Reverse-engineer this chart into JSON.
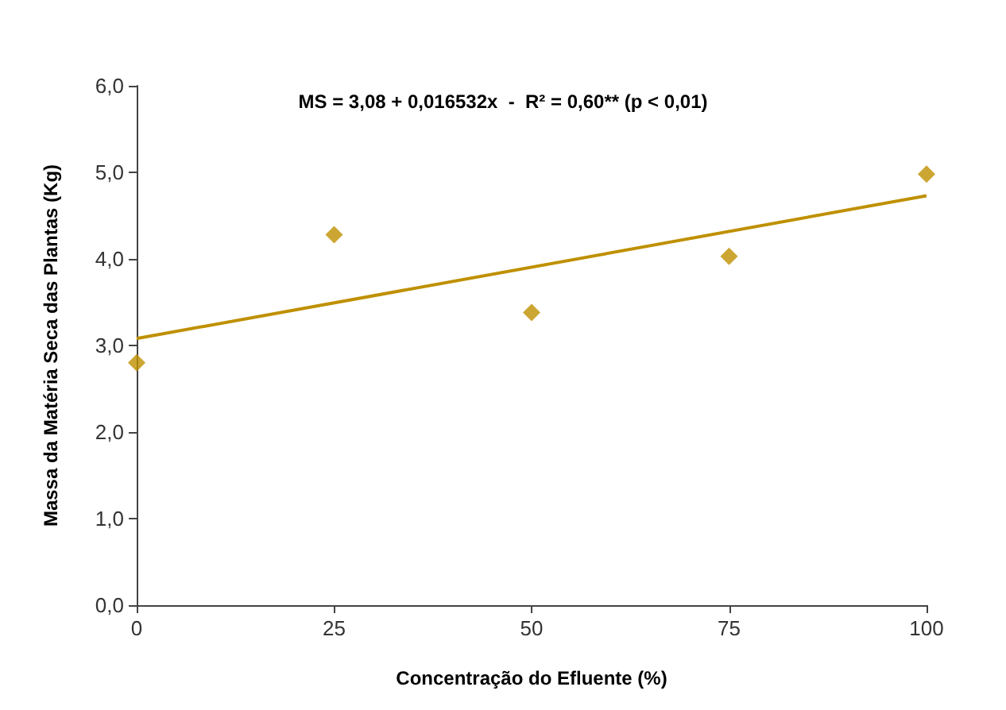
{
  "chart_data": {
    "type": "scatter",
    "xlabel": "Concentração do Efluente (%)",
    "ylabel": "Massa da Matéria Seca das Plantas (Kg)",
    "annotations": [
      "MS = 3,08 + 0,016532x  -  R² = 0,60** (p < 0,01)"
    ],
    "xlim": [
      0,
      100
    ],
    "xticks": [
      0,
      25,
      50,
      75,
      100
    ],
    "ylim": [
      0,
      6
    ],
    "yticks": [
      {
        "value": 0,
        "label": "0,0"
      },
      {
        "value": 1,
        "label": "1,0"
      },
      {
        "value": 2,
        "label": "2,0"
      },
      {
        "value": 3,
        "label": "3,0"
      },
      {
        "value": 4,
        "label": "4,0"
      },
      {
        "value": 5,
        "label": "5,0"
      },
      {
        "value": 6,
        "label": "6,0"
      }
    ],
    "grid": false,
    "marker": "diamond",
    "series": [
      {
        "color": "#bf9000",
        "x": [
          0,
          25,
          50,
          75,
          100
        ],
        "values": [
          2.8,
          4.28,
          3.38,
          4.03,
          4.98
        ]
      },
      {
        "type": "line",
        "color": "#bf9000",
        "x": [
          0,
          100
        ],
        "values": [
          3.08,
          4.73
        ],
        "marker": "none",
        "line_style": "solid"
      }
    ]
  }
}
